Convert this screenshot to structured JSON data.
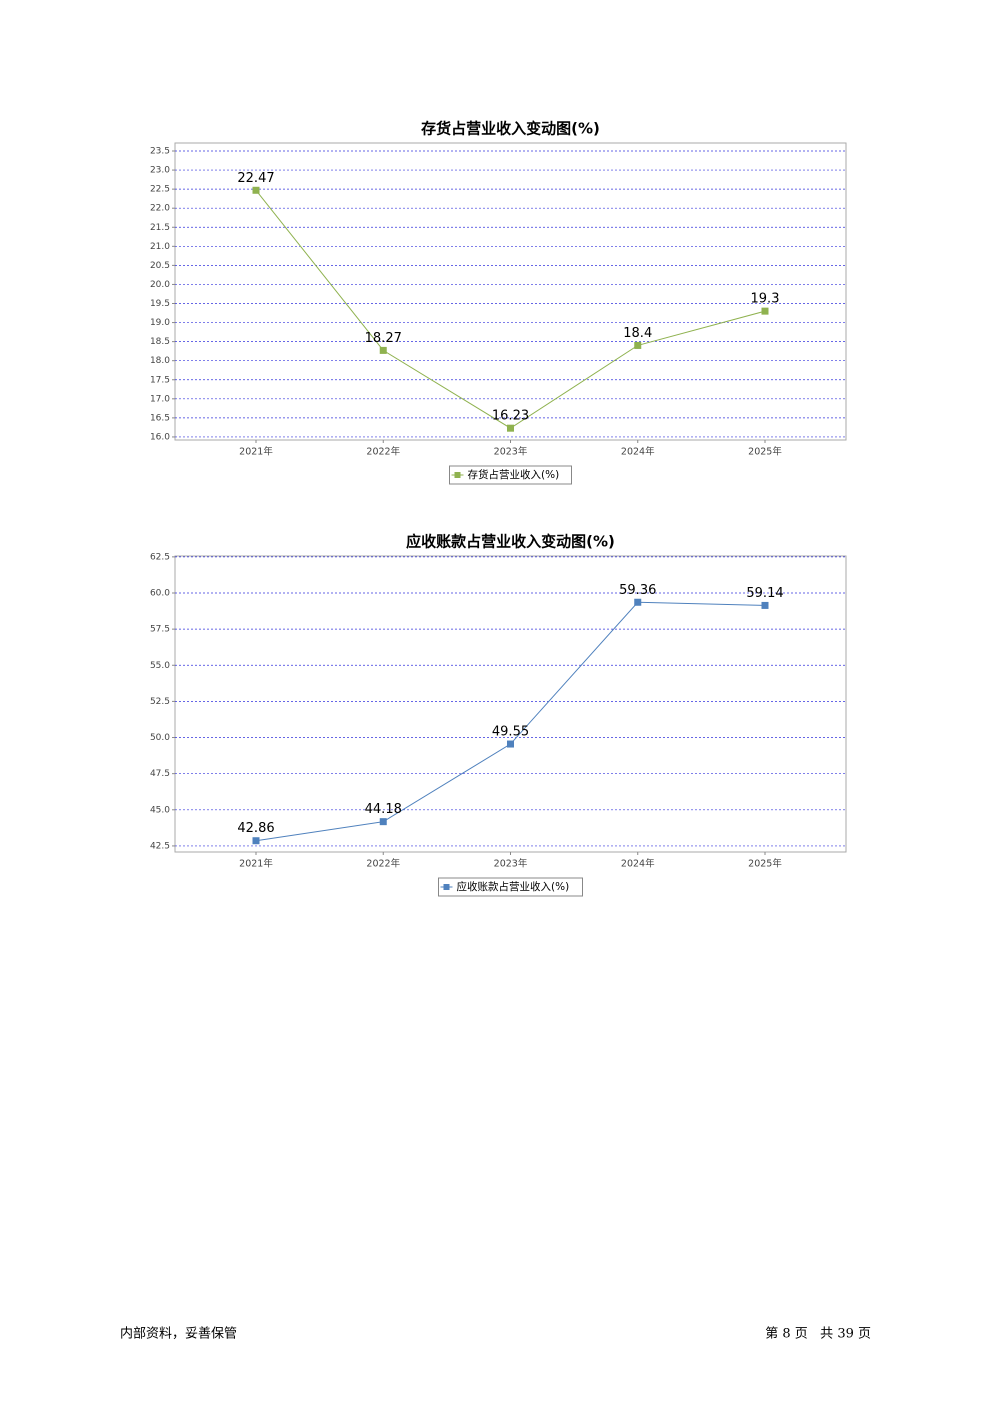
{
  "chart_data": [
    {
      "type": "line",
      "title": "存货占营业收入变动图(%)",
      "categories": [
        "2021年",
        "2022年",
        "2023年",
        "2024年",
        "2025年"
      ],
      "series": [
        {
          "name": "存货占营业收入(%)",
          "color": "#8fb24f",
          "values": [
            22.47,
            18.27,
            16.23,
            18.4,
            19.3
          ]
        }
      ],
      "ylim": [
        15.92,
        23.71
      ],
      "yticks": [
        {
          "value": 16,
          "label": "16.0"
        },
        16.5,
        {
          "value": 17,
          "label": "17.0"
        },
        17.5,
        {
          "value": 18,
          "label": "18.0"
        },
        18.5,
        {
          "value": 19,
          "label": "19.0"
        },
        19.5,
        {
          "value": 20,
          "label": "20.0"
        },
        20.5,
        {
          "value": 21,
          "label": "21.0"
        },
        21.5,
        {
          "value": 22,
          "label": "22.0"
        },
        22.5,
        {
          "value": 23,
          "label": "23.0"
        },
        23.5
      ],
      "grid": true,
      "legend": "bottom"
    },
    {
      "type": "line",
      "title": "应收账款占营业收入变动图(%)",
      "categories": [
        "2021年",
        "2022年",
        "2023年",
        "2024年",
        "2025年"
      ],
      "series": [
        {
          "name": "应收账款占营业收入(%)",
          "color": "#4f81bd",
          "values": [
            42.86,
            44.18,
            49.55,
            59.36,
            59.14
          ]
        }
      ],
      "ylim": [
        42.08,
        62.56
      ],
      "yticks": [
        42.5,
        {
          "value": 45,
          "label": "45.0"
        },
        47.5,
        {
          "value": 50,
          "label": "50.0"
        },
        52.5,
        {
          "value": 55,
          "label": "55.0"
        },
        57.5,
        {
          "value": 60,
          "label": "60.0"
        },
        62.5
      ],
      "grid": true,
      "legend": "bottom"
    }
  ],
  "footer": {
    "left": "内部资料，妥善保管",
    "right": "第 8 页   共 39 页"
  }
}
